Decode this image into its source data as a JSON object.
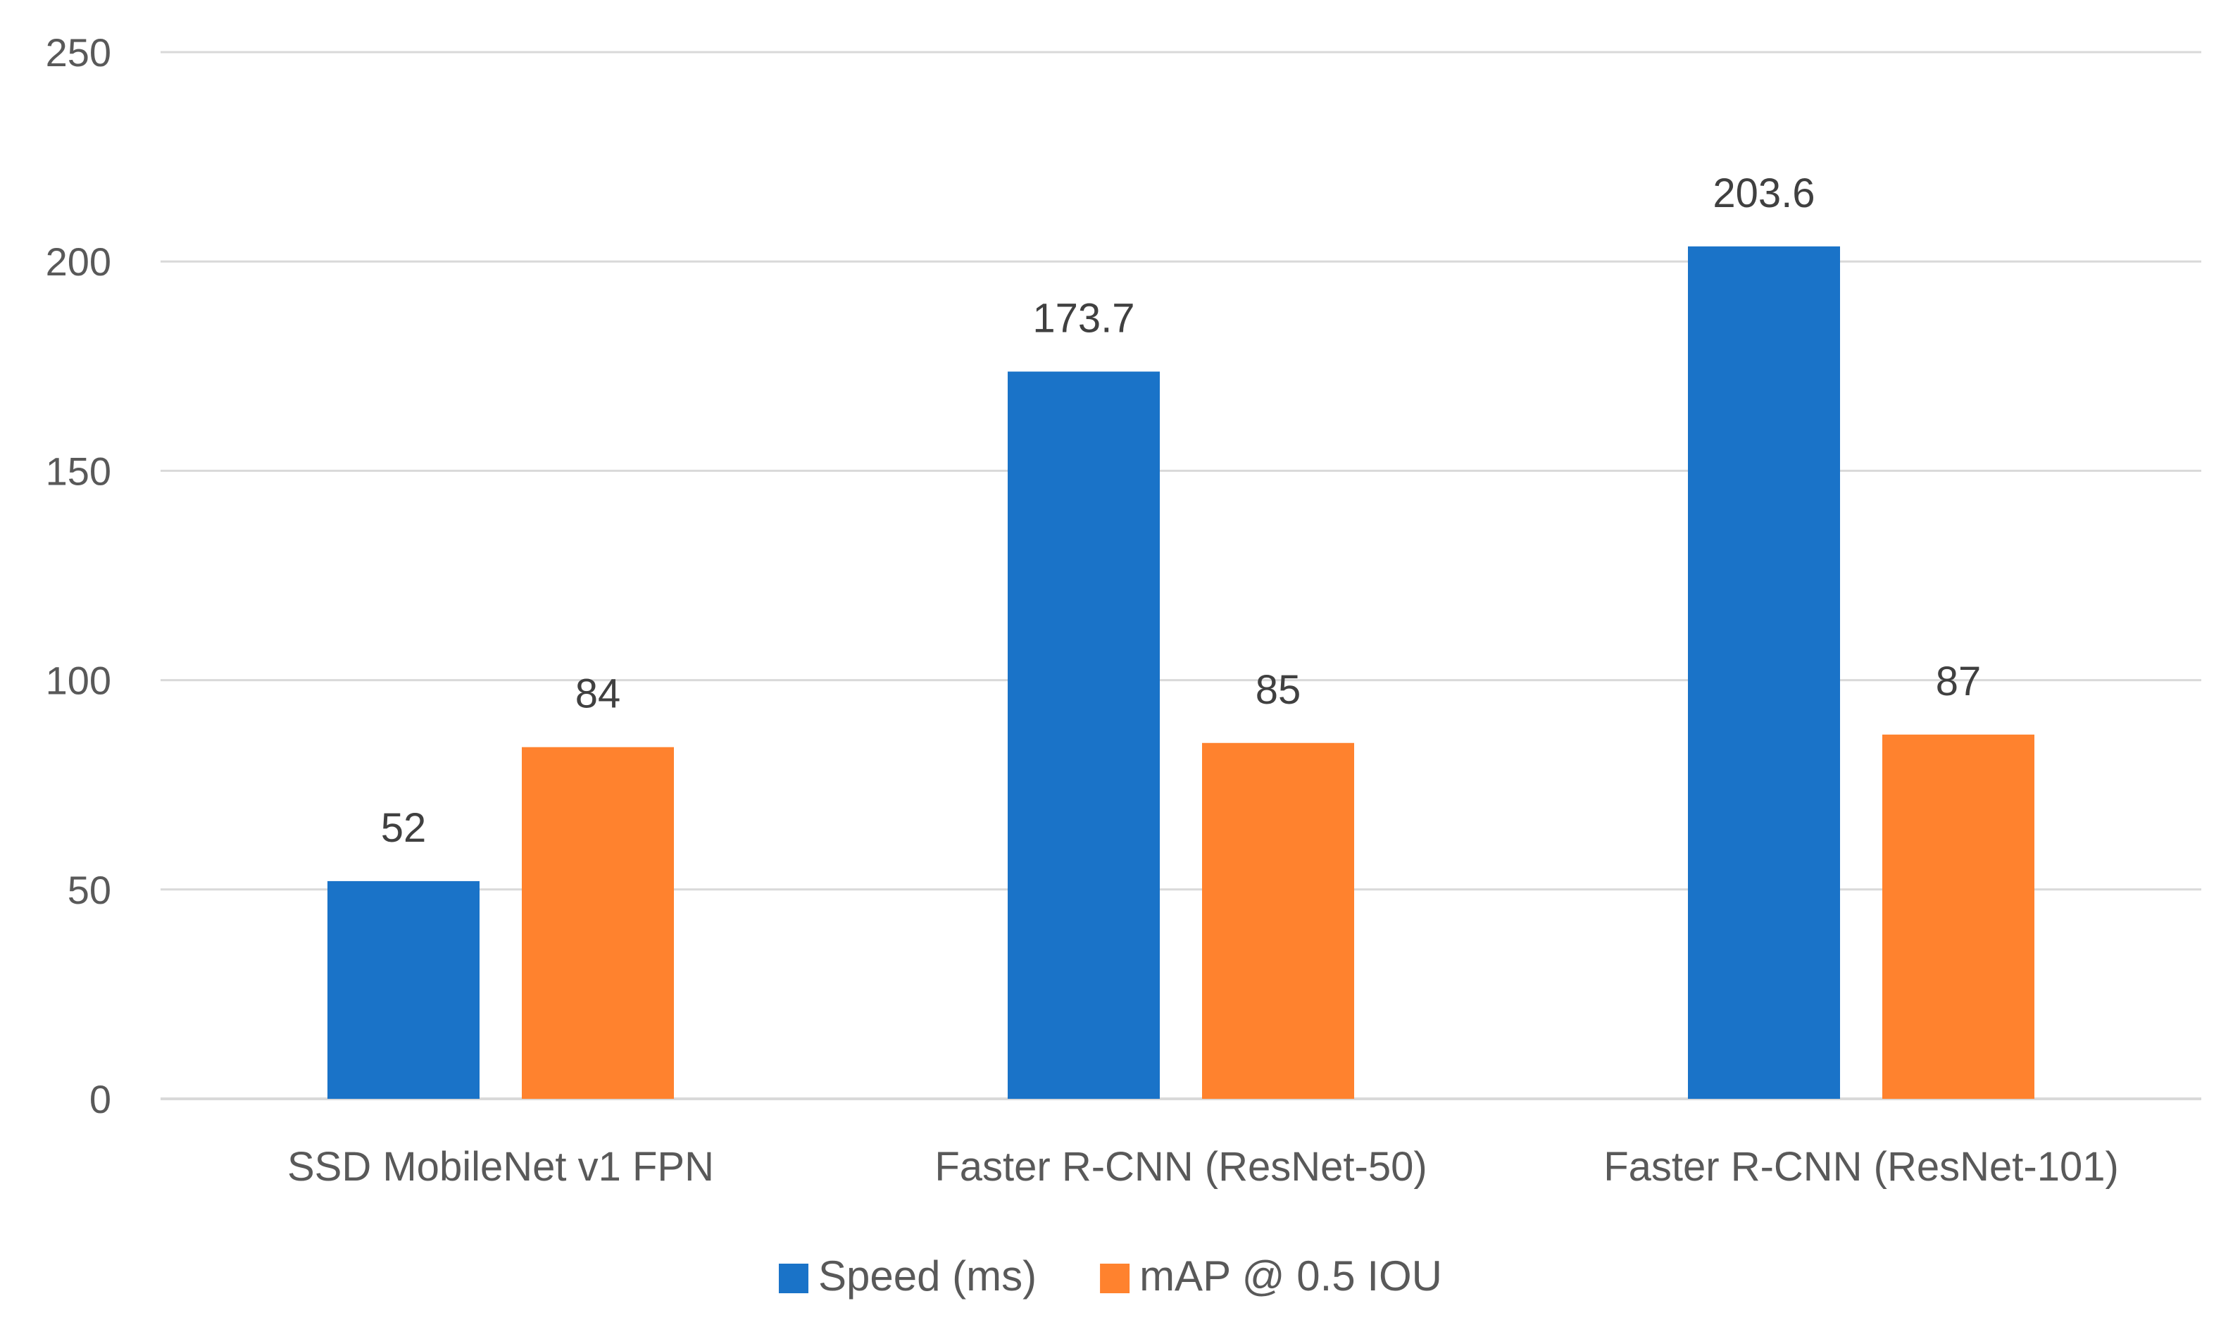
{
  "chart_data": {
    "type": "bar",
    "title": "",
    "xlabel": "",
    "ylabel": "",
    "categories": [
      "SSD MobileNet v1 FPN",
      "Faster R-CNN (ResNet-50)",
      "Faster R-CNN (ResNet-101)"
    ],
    "series": [
      {
        "name": "Speed (ms)",
        "values": [
          52,
          173.7,
          203.6
        ],
        "labels": [
          "52",
          "173.7",
          "203.6"
        ],
        "color": "#1A73C8"
      },
      {
        "name": "mAP @ 0.5 IOU",
        "values": [
          84,
          85,
          87
        ],
        "labels": [
          "84",
          "85",
          "87"
        ],
        "color": "#FF822E"
      }
    ],
    "ylim": [
      0,
      250
    ],
    "yticks": [
      0,
      50,
      100,
      150,
      200,
      250
    ],
    "grid": true,
    "gridColor": "#D9D9D9",
    "legend": "bottom-center"
  }
}
